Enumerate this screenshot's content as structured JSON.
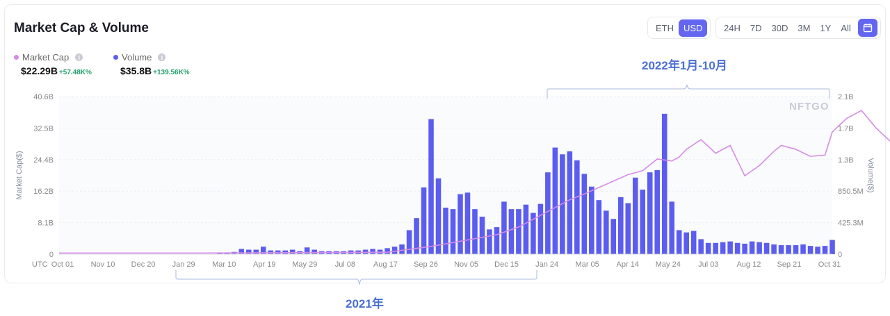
{
  "title": "Market Cap & Volume",
  "currency_toggle": [
    {
      "label": "ETH",
      "active": false
    },
    {
      "label": "USD",
      "active": true
    }
  ],
  "range_toggle": [
    {
      "label": "24H",
      "active": false
    },
    {
      "label": "7D",
      "active": false
    },
    {
      "label": "30D",
      "active": false
    },
    {
      "label": "3M",
      "active": false
    },
    {
      "label": "1Y",
      "active": false
    },
    {
      "label": "All",
      "active": false
    }
  ],
  "legend": [
    {
      "name": "Market Cap",
      "color": "#d58be6",
      "value": "$22.29B",
      "change": "+57.48K%"
    },
    {
      "name": "Volume",
      "color": "#5b5cf0",
      "value": "$35.8B",
      "change": "+139.56K%"
    }
  ],
  "watermark": "NFTGO",
  "annotations": {
    "top_label": "2022年1月-10月",
    "bottom_label": "2021年"
  },
  "colors": {
    "accent": "#6366f1",
    "bar": "#5b5cf0",
    "line": "#d58be6",
    "bracket": "#a9b9dc",
    "annotation": "#4a6fd6"
  },
  "chart_data": {
    "type": "bar",
    "xlabel": "UTC",
    "ylabel": "Market Cap($)",
    "y2label": "Volume($)",
    "ylim": [
      0,
      40.6
    ],
    "y2lim": [
      0,
      2.1
    ],
    "yticks": [
      "0",
      "8.1B",
      "16.2B",
      "24.4B",
      "32.5B",
      "40.6B"
    ],
    "y2ticks": [
      "0",
      "425.3M",
      "850.5M",
      "1.3B",
      "1.7B",
      "2.1B"
    ],
    "xticks": [
      "Oct 01",
      "Nov 10",
      "Dec 20",
      "Jan 29",
      "Mar 10",
      "Apr 19",
      "May 29",
      "Jul 08",
      "Aug 17",
      "Sep 26",
      "Nov 05",
      "Dec 15",
      "Jan 24",
      "Mar 05",
      "Apr 14",
      "May 24",
      "Jul 03",
      "Aug 12",
      "Sep 21",
      "Oct 31"
    ],
    "grid": true,
    "series": [
      {
        "name": "Volume",
        "axis": "right",
        "type": "bar",
        "values": [
          0,
          0,
          0,
          0,
          0,
          0,
          0,
          0,
          0,
          0,
          0,
          0,
          0,
          0,
          0,
          0,
          0,
          0,
          0,
          0,
          0,
          0,
          0.01,
          0.02,
          0.03,
          0.07,
          0.06,
          0.06,
          0.1,
          0.05,
          0.05,
          0.05,
          0.06,
          0.04,
          0.09,
          0.06,
          0.04,
          0.04,
          0.04,
          0.04,
          0.05,
          0.05,
          0.06,
          0.07,
          0.06,
          0.08,
          0.1,
          0.13,
          0.32,
          0.48,
          0.89,
          1.8,
          1.01,
          0.62,
          0.6,
          0.8,
          0.82,
          0.6,
          0.5,
          0.33,
          0.36,
          0.7,
          0.6,
          0.6,
          0.66,
          0.55,
          0.67,
          1.09,
          1.42,
          1.33,
          1.37,
          1.25,
          1.07,
          0.9,
          0.72,
          0.58,
          0.47,
          0.76,
          0.68,
          1.02,
          0.86,
          1.09,
          1.12,
          1.87,
          0.7,
          0.32,
          0.29,
          0.31,
          0.2,
          0.15,
          0.15,
          0.16,
          0.17,
          0.15,
          0.14,
          0.17,
          0.16,
          0.15,
          0.13,
          0.12,
          0.12,
          0.12,
          0.13,
          0.11,
          0.1,
          0.11,
          0.19
        ]
      },
      {
        "name": "Market Cap",
        "axis": "left",
        "type": "line",
        "x": [
          0,
          20,
          45,
          51,
          60,
          63,
          66,
          70,
          72,
          75,
          78,
          80,
          82,
          84,
          85,
          86,
          88,
          90,
          92,
          94,
          96,
          98,
          99,
          101,
          103,
          105,
          106,
          108,
          110,
          112,
          114,
          116,
          118,
          120,
          122,
          124,
          126,
          128,
          130,
          132,
          134,
          136,
          138,
          140,
          142,
          144,
          146,
          148,
          150,
          152,
          154,
          156,
          158,
          160,
          162,
          164,
          166,
          168,
          170,
          172,
          174,
          176
        ],
        "y": [
          0.3,
          0.3,
          0.5,
          2.0,
          5.0,
          7.0,
          10.0,
          14.0,
          15.5,
          18.0,
          20.5,
          21.5,
          24.5,
          24.0,
          25.0,
          27.0,
          29.5,
          26.0,
          28.0,
          20.2,
          22.8,
          26.5,
          28.0,
          27.0,
          25.2,
          25.5,
          31.5,
          35.0,
          37.0,
          32.5,
          29.0,
          27.0,
          30.0,
          36.0,
          39.0,
          35.5,
          36.5,
          35.0,
          31.0,
          28.0,
          26.0,
          25.5,
          23.0,
          21.0,
          20.5,
          21.5,
          22.0,
          21.5,
          23.0,
          22.0,
          22.5,
          21.0,
          20.8,
          21.2,
          20.5,
          21.3,
          22.0,
          21.0,
          21.2,
          21.5,
          21.0,
          21.7
        ]
      }
    ]
  }
}
